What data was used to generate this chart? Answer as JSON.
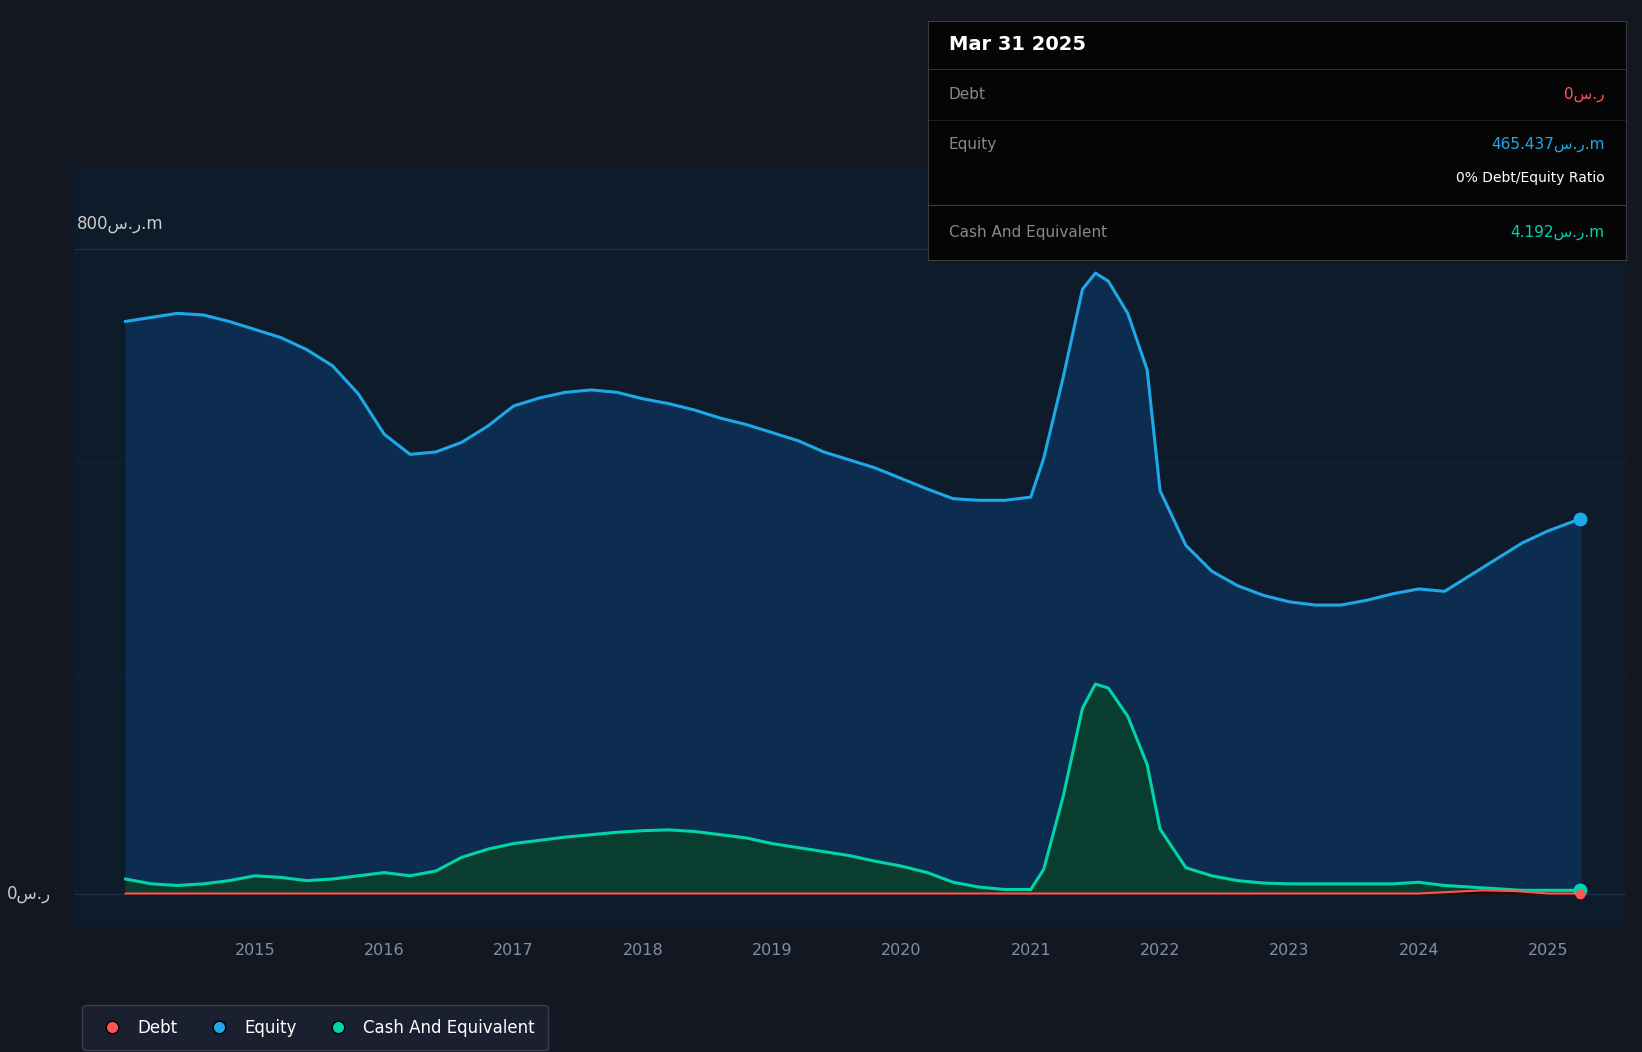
{
  "bg_color": "#131722",
  "plot_bg_color": "#0d1b2a",
  "ylabel": "800س.ر.m",
  "y_zero_label": "0س.ر",
  "xlim_start": 2013.6,
  "xlim_end": 2025.6,
  "ylim_bottom": -40,
  "ylim_top": 900,
  "grid_color": "#1e3048",
  "equity_color": "#1fa8e8",
  "equity_fill": "#0d2d50",
  "cash_color": "#00d4a8",
  "cash_fill": "#093d30",
  "debt_color": "#ff5555",
  "debt_fill": "#2a0808",
  "equity_data_x": [
    2014.0,
    2014.2,
    2014.4,
    2014.6,
    2014.8,
    2015.0,
    2015.2,
    2015.4,
    2015.6,
    2015.8,
    2016.0,
    2016.2,
    2016.4,
    2016.6,
    2016.8,
    2017.0,
    2017.2,
    2017.4,
    2017.6,
    2017.8,
    2018.0,
    2018.2,
    2018.4,
    2018.6,
    2018.8,
    2019.0,
    2019.2,
    2019.4,
    2019.6,
    2019.8,
    2020.0,
    2020.2,
    2020.4,
    2020.6,
    2020.8,
    2021.0,
    2021.1,
    2021.25,
    2021.4,
    2021.5,
    2021.6,
    2021.75,
    2021.9,
    2022.0,
    2022.2,
    2022.4,
    2022.6,
    2022.8,
    2023.0,
    2023.2,
    2023.4,
    2023.6,
    2023.8,
    2024.0,
    2024.2,
    2024.4,
    2024.6,
    2024.8,
    2025.0,
    2025.25
  ],
  "equity_data_y": [
    710,
    715,
    720,
    718,
    710,
    700,
    690,
    675,
    655,
    620,
    570,
    545,
    548,
    560,
    580,
    605,
    615,
    622,
    625,
    622,
    614,
    608,
    600,
    590,
    582,
    572,
    562,
    548,
    538,
    528,
    515,
    502,
    490,
    488,
    488,
    492,
    540,
    640,
    750,
    770,
    760,
    720,
    650,
    500,
    432,
    400,
    382,
    370,
    362,
    358,
    358,
    364,
    372,
    378,
    375,
    395,
    415,
    435,
    450,
    465
  ],
  "cash_data_x": [
    2014.0,
    2014.2,
    2014.4,
    2014.6,
    2014.8,
    2015.0,
    2015.2,
    2015.4,
    2015.6,
    2015.8,
    2016.0,
    2016.2,
    2016.4,
    2016.6,
    2016.8,
    2017.0,
    2017.2,
    2017.4,
    2017.6,
    2017.8,
    2018.0,
    2018.2,
    2018.4,
    2018.6,
    2018.8,
    2019.0,
    2019.2,
    2019.4,
    2019.6,
    2019.8,
    2020.0,
    2020.2,
    2020.4,
    2020.6,
    2020.8,
    2021.0,
    2021.1,
    2021.25,
    2021.4,
    2021.5,
    2021.6,
    2021.75,
    2021.9,
    2022.0,
    2022.2,
    2022.4,
    2022.6,
    2022.8,
    2023.0,
    2023.2,
    2023.4,
    2023.6,
    2023.8,
    2024.0,
    2024.2,
    2024.4,
    2024.6,
    2024.8,
    2025.0,
    2025.25
  ],
  "cash_data_y": [
    18,
    12,
    10,
    12,
    16,
    22,
    20,
    16,
    18,
    22,
    26,
    22,
    28,
    45,
    55,
    62,
    66,
    70,
    73,
    76,
    78,
    79,
    77,
    73,
    69,
    62,
    57,
    52,
    47,
    40,
    34,
    26,
    14,
    8,
    5,
    5,
    30,
    120,
    230,
    260,
    255,
    220,
    160,
    80,
    32,
    22,
    16,
    13,
    12,
    12,
    12,
    12,
    12,
    14,
    10,
    8,
    6,
    4,
    4,
    4
  ],
  "debt_data_x": [
    2014.0,
    2015.0,
    2016.0,
    2017.0,
    2018.0,
    2019.0,
    2020.0,
    2021.0,
    2022.0,
    2023.0,
    2024.0,
    2024.25,
    2024.5,
    2024.75,
    2025.0,
    2025.25
  ],
  "debt_data_y": [
    0,
    0,
    0,
    0,
    0,
    0,
    0,
    0,
    0,
    0,
    0,
    2,
    4,
    3,
    0,
    0
  ],
  "xticks": [
    2015,
    2016,
    2017,
    2018,
    2019,
    2020,
    2021,
    2022,
    2023,
    2024,
    2025
  ],
  "legend_labels": [
    "Debt",
    "Equity",
    "Cash And Equivalent"
  ],
  "legend_colors": [
    "#ff5555",
    "#1fa8e8",
    "#00d4a8"
  ],
  "tooltip_title": "Mar 31 2025",
  "tooltip_debt_label": "Debt",
  "tooltip_debt_value": "0س.ر",
  "tooltip_equity_label": "Equity",
  "tooltip_equity_value": "465.437س.ر.m",
  "tooltip_ratio": "0% Debt/Equity Ratio",
  "tooltip_cash_label": "Cash And Equivalent",
  "tooltip_cash_value": "4.192س.ر.m"
}
